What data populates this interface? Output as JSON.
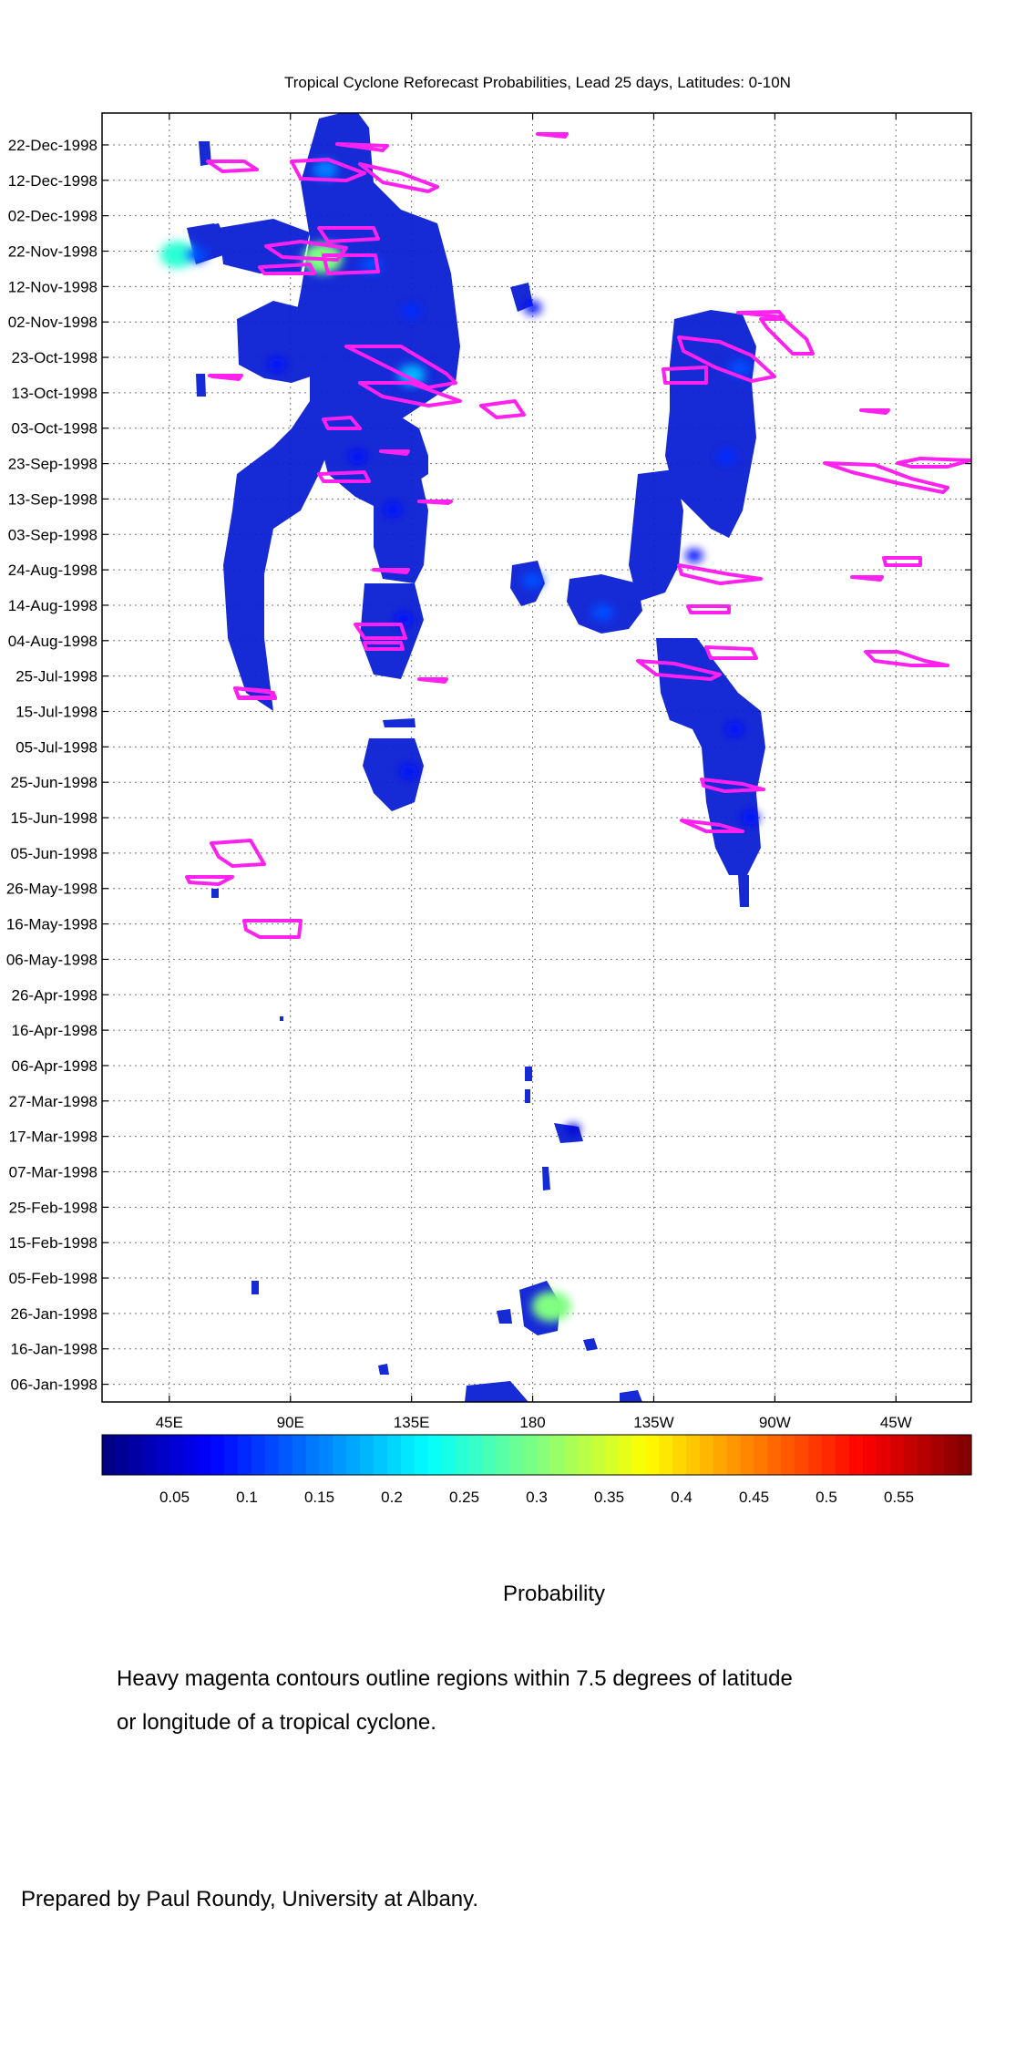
{
  "chart_data": {
    "type": "heatmap",
    "title": "Tropical Cyclone Reforecast Probabilities, Lead 25 days, Latitudes: 0-10N",
    "x_ticks": [
      {
        "lon": 45,
        "label": "45E"
      },
      {
        "lon": 90,
        "label": "90E"
      },
      {
        "lon": 135,
        "label": "135E"
      },
      {
        "lon": 180,
        "label": "180"
      },
      {
        "lon": 225,
        "label": "135W"
      },
      {
        "lon": 270,
        "label": "90W"
      },
      {
        "lon": 315,
        "label": "45W"
      }
    ],
    "xlim": [
      20,
      343
    ],
    "y_ticks": [
      "06-Jan-1998",
      "16-Jan-1998",
      "26-Jan-1998",
      "05-Feb-1998",
      "15-Feb-1998",
      "25-Feb-1998",
      "07-Mar-1998",
      "17-Mar-1998",
      "27-Mar-1998",
      "06-Apr-1998",
      "16-Apr-1998",
      "26-Apr-1998",
      "06-May-1998",
      "16-May-1998",
      "26-May-1998",
      "05-Jun-1998",
      "15-Jun-1998",
      "25-Jun-1998",
      "05-Jul-1998",
      "15-Jul-1998",
      "25-Jul-1998",
      "04-Aug-1998",
      "14-Aug-1998",
      "24-Aug-1998",
      "03-Sep-1998",
      "13-Sep-1998",
      "23-Sep-1998",
      "03-Oct-1998",
      "13-Oct-1998",
      "23-Oct-1998",
      "02-Nov-1998",
      "12-Nov-1998",
      "22-Nov-1998",
      "02-Dec-1998",
      "12-Dec-1998",
      "22-Dec-1998"
    ],
    "ylim": [
      "01-Jan-1998",
      "31-Dec-1998"
    ],
    "grid": true,
    "colorbar": {
      "min": 0.0,
      "max": 0.6,
      "ticks": [
        0.05,
        0.1,
        0.15,
        0.2,
        0.25,
        0.3,
        0.35,
        0.4,
        0.45,
        0.5,
        0.55
      ],
      "tick_labels": [
        "0.05",
        "0.1",
        "0.15",
        "0.2",
        "0.25",
        "0.3",
        "0.35",
        "0.4",
        "0.45",
        "0.5",
        "0.55"
      ],
      "label": "Probability",
      "colormap": "jet"
    },
    "probability_regions": [
      {
        "lon": 103,
        "date": "1998-12-15",
        "p": 0.15
      },
      {
        "lon": 102,
        "date": "1998-11-20",
        "p": 0.3
      },
      {
        "lon": 48,
        "date": "1998-11-21",
        "p": 0.25
      },
      {
        "lon": 55,
        "date": "1998-11-21",
        "p": 0.12
      },
      {
        "lon": 120,
        "date": "1998-11-18",
        "p": 0.12
      },
      {
        "lon": 135,
        "date": "1998-11-05",
        "p": 0.1
      },
      {
        "lon": 135,
        "date": "1998-10-18",
        "p": 0.18
      },
      {
        "lon": 85,
        "date": "1998-10-21",
        "p": 0.08
      },
      {
        "lon": 115,
        "date": "1998-09-25",
        "p": 0.08
      },
      {
        "lon": 128,
        "date": "1998-09-10",
        "p": 0.08
      },
      {
        "lon": 132,
        "date": "1998-08-10",
        "p": 0.08
      },
      {
        "lon": 134,
        "date": "1998-06-28",
        "p": 0.08
      },
      {
        "lon": 180,
        "date": "1998-08-21",
        "p": 0.12
      },
      {
        "lon": 206,
        "date": "1998-08-12",
        "p": 0.12
      },
      {
        "lon": 257,
        "date": "1998-10-20",
        "p": 0.12
      },
      {
        "lon": 252,
        "date": "1998-09-25",
        "p": 0.1
      },
      {
        "lon": 240,
        "date": "1998-08-28",
        "p": 0.08
      },
      {
        "lon": 255,
        "date": "1998-07-10",
        "p": 0.08
      },
      {
        "lon": 261,
        "date": "1998-06-15",
        "p": 0.08
      },
      {
        "lon": 187,
        "date": "1998-01-28",
        "p": 0.3
      },
      {
        "lon": 180,
        "date": "1998-11-06",
        "p": 0.08
      },
      {
        "lon": 195,
        "date": "1998-03-19",
        "p": 0.05
      }
    ],
    "contour_note": "Heavy magenta contours outline regions within 7.5 degrees of latitude or longitude of a tropical cyclone.",
    "colors": {
      "contour": "#ff22ee",
      "grid": "#555555",
      "axes": "#000000"
    }
  },
  "caption": {
    "probability_label": "Probability",
    "note_line1": "Heavy magenta contours outline regions within 7.5 degrees of latitude",
    "note_line2": "or longitude of a tropical cyclone.",
    "credit": "Prepared by Paul Roundy, University at Albany."
  }
}
